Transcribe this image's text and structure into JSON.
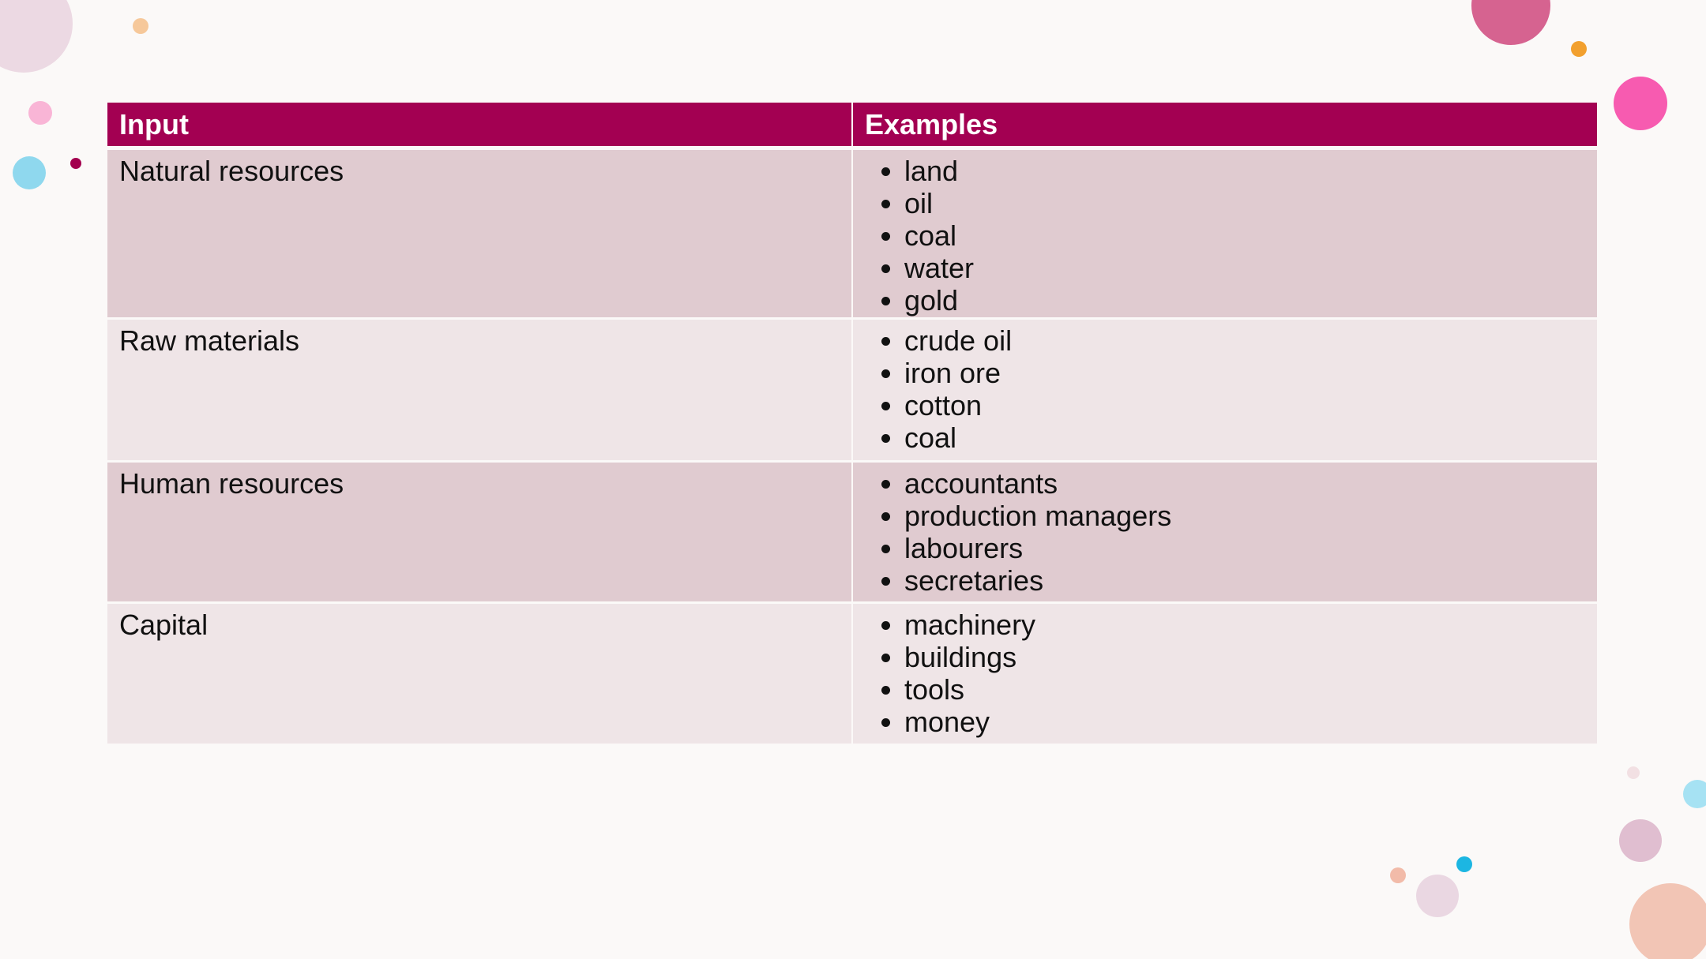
{
  "table": {
    "header": [
      "Input",
      "Examples"
    ],
    "rows": [
      {
        "label": "Natural resources",
        "items": [
          "land",
          "oil",
          "coal",
          "water",
          "gold"
        ]
      },
      {
        "label": "Raw materials",
        "items": [
          "crude oil",
          "iron ore",
          "cotton",
          "coal"
        ]
      },
      {
        "label": "Human resources",
        "items": [
          "accountants",
          "production managers",
          "labourers",
          "secretaries"
        ]
      },
      {
        "label": "Capital",
        "items": [
          "machinery",
          "buildings",
          "tools",
          "money"
        ]
      }
    ]
  }
}
